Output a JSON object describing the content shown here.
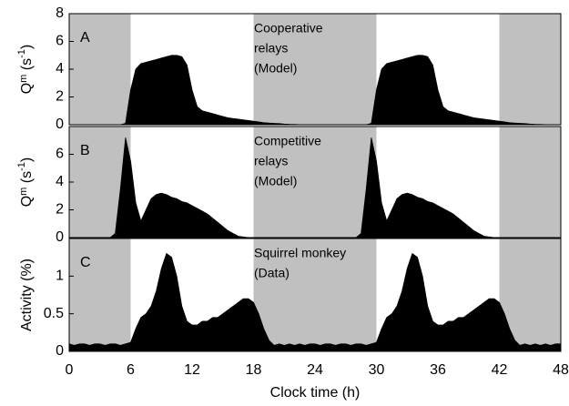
{
  "chart_data": [
    {
      "type": "area",
      "panel_label": "A",
      "annotation": [
        "Cooperative",
        "relays",
        "(Model)"
      ],
      "ylabel": [
        "Q",
        "m",
        " (s",
        "-1",
        ")"
      ],
      "shaded": [
        [
          0,
          6
        ],
        [
          18,
          30
        ],
        [
          42,
          48
        ]
      ],
      "xlim": [
        0,
        48
      ],
      "ylim": [
        0,
        8
      ],
      "yticks": [
        0,
        2,
        4,
        6,
        8
      ],
      "color": "#000000",
      "x": [
        0,
        0.5,
        1,
        1.5,
        2,
        2.5,
        3,
        3.5,
        4,
        4.5,
        5,
        5.5,
        6,
        6.5,
        7,
        7.5,
        8,
        8.5,
        9,
        9.5,
        10,
        10.5,
        11,
        11.5,
        12,
        12.5,
        13,
        13.5,
        14,
        14.5,
        15,
        15.5,
        16,
        16.5,
        17,
        17.5,
        18,
        18.5,
        19,
        19.5,
        20,
        20.5,
        21,
        21.5,
        22,
        22.5,
        23,
        23.5,
        24,
        24.5,
        25,
        25.5,
        26,
        26.5,
        27,
        27.5,
        28,
        28.5,
        29,
        29.5,
        30,
        30.5,
        31,
        31.5,
        32,
        32.5,
        33,
        33.5,
        34,
        34.5,
        35,
        35.5,
        36,
        36.5,
        37,
        37.5,
        38,
        38.5,
        39,
        39.5,
        40,
        40.5,
        41,
        41.5,
        42,
        42.5,
        43,
        43.5,
        44,
        44.5,
        45,
        45.5,
        46,
        46.5,
        47,
        47.5,
        48
      ],
      "values": [
        0,
        0,
        0,
        0,
        0,
        0,
        0,
        0,
        0,
        0,
        0,
        0.1,
        2.5,
        4.0,
        4.4,
        4.5,
        4.6,
        4.7,
        4.8,
        4.9,
        5.0,
        5.0,
        4.9,
        4.3,
        2.5,
        1.3,
        1.0,
        0.9,
        0.8,
        0.7,
        0.6,
        0.5,
        0.45,
        0.4,
        0.35,
        0.3,
        0.25,
        0.2,
        0.15,
        0.12,
        0.1,
        0.08,
        0.05,
        0.03,
        0.02,
        0.01,
        0,
        0,
        0,
        0,
        0,
        0,
        0,
        0,
        0,
        0,
        0,
        0,
        0,
        0.1,
        2.5,
        4.0,
        4.4,
        4.5,
        4.6,
        4.7,
        4.8,
        4.9,
        5.0,
        5.0,
        4.9,
        4.3,
        2.5,
        1.3,
        1.0,
        0.9,
        0.8,
        0.7,
        0.6,
        0.5,
        0.45,
        0.4,
        0.35,
        0.3,
        0.25,
        0.2,
        0.15,
        0.12,
        0.1,
        0.08,
        0.05,
        0.03,
        0.02,
        0.01,
        0,
        0,
        0
      ]
    },
    {
      "type": "area",
      "panel_label": "B",
      "annotation": [
        "Competitive",
        "relays",
        "(Model)"
      ],
      "ylabel": [
        "Q",
        "m",
        " (s",
        "-1",
        ")"
      ],
      "shaded": [
        [
          0,
          6
        ],
        [
          18,
          30
        ],
        [
          42,
          48
        ]
      ],
      "xlim": [
        0,
        48
      ],
      "ylim": [
        0,
        8
      ],
      "yticks": [
        0,
        2,
        4,
        6
      ],
      "color": "#000000",
      "x": [
        0,
        0.5,
        1,
        1.5,
        2,
        2.5,
        3,
        3.5,
        4,
        4.5,
        5,
        5.5,
        6,
        6.5,
        7,
        7.5,
        8,
        8.5,
        9,
        9.5,
        10,
        10.5,
        11,
        11.5,
        12,
        12.5,
        13,
        13.5,
        14,
        14.5,
        15,
        15.5,
        16,
        16.5,
        17,
        17.5,
        18,
        18.5,
        19,
        19.5,
        20,
        20.5,
        21,
        21.5,
        22,
        22.5,
        23,
        23.5,
        24,
        24.5,
        25,
        25.5,
        26,
        26.5,
        27,
        27.5,
        28,
        28.5,
        29,
        29.5,
        30,
        30.5,
        31,
        31.5,
        32,
        32.5,
        33,
        33.5,
        34,
        34.5,
        35,
        35.5,
        36,
        36.5,
        37,
        37.5,
        38,
        38.5,
        39,
        39.5,
        40,
        40.5,
        41,
        41.5,
        42,
        42.5,
        43,
        43.5,
        44,
        44.5,
        45,
        45.5,
        46,
        46.5,
        47,
        47.5,
        48
      ],
      "values": [
        0,
        0,
        0,
        0,
        0,
        0,
        0,
        0,
        0,
        0.3,
        3.5,
        7.2,
        5.5,
        2.5,
        1.2,
        2.0,
        2.8,
        3.1,
        3.2,
        3.1,
        2.9,
        2.8,
        2.6,
        2.5,
        2.3,
        2.1,
        1.9,
        1.7,
        1.4,
        1.1,
        0.8,
        0.5,
        0.3,
        0.1,
        0.05,
        0,
        0,
        0,
        0,
        0,
        0,
        0,
        0,
        0,
        0,
        0,
        0,
        0,
        0,
        0,
        0,
        0,
        0,
        0,
        0,
        0,
        0,
        0.3,
        3.5,
        7.2,
        5.5,
        2.5,
        1.2,
        2.0,
        2.8,
        3.1,
        3.2,
        3.1,
        2.9,
        2.8,
        2.6,
        2.5,
        2.3,
        2.1,
        1.9,
        1.7,
        1.4,
        1.1,
        0.8,
        0.5,
        0.3,
        0.1,
        0.05,
        0,
        0,
        0,
        0,
        0,
        0,
        0,
        0,
        0,
        0,
        0,
        0,
        0,
        0
      ]
    },
    {
      "type": "area",
      "panel_label": "C",
      "annotation": [
        "Squirrel monkey",
        "(Data)"
      ],
      "ylabel": [
        "Activity (%)"
      ],
      "shaded": [
        [
          0,
          6
        ],
        [
          18,
          30
        ],
        [
          42,
          48
        ]
      ],
      "xlabel": "Clock time (h)",
      "xlim": [
        0,
        48
      ],
      "xticks": [
        0,
        6,
        12,
        18,
        24,
        30,
        36,
        42,
        48
      ],
      "ylim": [
        0,
        1.5
      ],
      "yticks": [
        0,
        0.5,
        1
      ],
      "color": "#000000",
      "x": [
        0,
        0.5,
        1,
        1.5,
        2,
        2.5,
        3,
        3.5,
        4,
        4.5,
        5,
        5.5,
        6,
        6.5,
        7,
        7.5,
        8,
        8.5,
        9,
        9.5,
        10,
        10.5,
        11,
        11.5,
        12,
        12.5,
        13,
        13.5,
        14,
        14.5,
        15,
        15.5,
        16,
        16.5,
        17,
        17.5,
        18,
        18.5,
        19,
        19.5,
        20,
        20.5,
        21,
        21.5,
        22,
        22.5,
        23,
        23.5,
        24,
        24.5,
        25,
        25.5,
        26,
        26.5,
        27,
        27.5,
        28,
        28.5,
        29,
        29.5,
        30,
        30.5,
        31,
        31.5,
        32,
        32.5,
        33,
        33.5,
        34,
        34.5,
        35,
        35.5,
        36,
        36.5,
        37,
        37.5,
        38,
        38.5,
        39,
        39.5,
        40,
        40.5,
        41,
        41.5,
        42,
        42.5,
        43,
        43.5,
        44,
        44.5,
        45,
        45.5,
        46,
        46.5,
        47,
        47.5,
        48
      ],
      "values": [
        0.1,
        0.08,
        0.1,
        0.1,
        0.08,
        0.1,
        0.1,
        0.08,
        0.1,
        0.1,
        0.08,
        0.1,
        0.12,
        0.3,
        0.45,
        0.5,
        0.6,
        0.8,
        1.1,
        1.3,
        1.25,
        1.0,
        0.6,
        0.4,
        0.35,
        0.35,
        0.4,
        0.4,
        0.45,
        0.45,
        0.5,
        0.55,
        0.6,
        0.65,
        0.7,
        0.7,
        0.65,
        0.5,
        0.3,
        0.15,
        0.08,
        0.1,
        0.08,
        0.1,
        0.08,
        0.1,
        0.08,
        0.1,
        0.1,
        0.08,
        0.1,
        0.1,
        0.08,
        0.1,
        0.1,
        0.08,
        0.1,
        0.1,
        0.08,
        0.1,
        0.12,
        0.3,
        0.45,
        0.5,
        0.6,
        0.8,
        1.1,
        1.3,
        1.25,
        1.0,
        0.6,
        0.4,
        0.35,
        0.35,
        0.4,
        0.4,
        0.45,
        0.45,
        0.5,
        0.55,
        0.6,
        0.65,
        0.7,
        0.7,
        0.65,
        0.5,
        0.3,
        0.15,
        0.08,
        0.1,
        0.08,
        0.1,
        0.08,
        0.1,
        0.08,
        0.1,
        0.1
      ]
    }
  ]
}
